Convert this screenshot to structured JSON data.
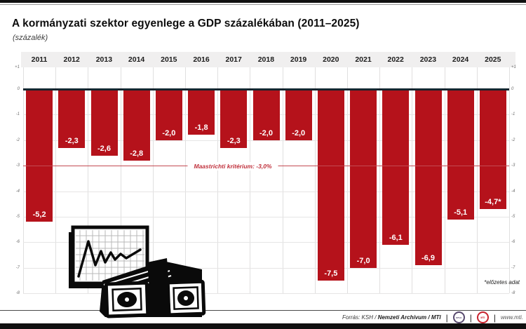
{
  "header": {
    "title": "A kormányzati szektor egyenlege a GDP százalékában (2011–2025)",
    "subtitle": "(százalék)"
  },
  "chart_data": {
    "type": "bar",
    "title": "A kormányzati szektor egyenlege a GDP százalékában (2011–2025)",
    "ylabel": "százalék",
    "categories": [
      "2011",
      "2012",
      "2013",
      "2014",
      "2015",
      "2016",
      "2017",
      "2018",
      "2019",
      "2020",
      "2021",
      "2022",
      "2023",
      "2024",
      "2025"
    ],
    "values": [
      -5.2,
      -2.3,
      -2.6,
      -2.8,
      -2.0,
      -1.8,
      -2.3,
      -2.0,
      -2.0,
      -7.5,
      -7.0,
      -6.1,
      -6.9,
      -5.1,
      -4.7
    ],
    "value_labels": [
      "-5,2",
      "-2,3",
      "-2,6",
      "-2,8",
      "-2,0",
      "-1,8",
      "-2,3",
      "-2,0",
      "-2,0",
      "-7,5",
      "-7,0",
      "-6,1",
      "-6,9",
      "-5,1",
      "-4,7*"
    ],
    "ylim": [
      -8,
      1
    ],
    "y_ticks": [
      "+1",
      "0",
      "-1",
      "-2",
      "-3",
      "-4",
      "-5",
      "-6",
      "-7",
      "-8"
    ],
    "grid": true,
    "legend": "none",
    "bar_color": "#b5121b",
    "zero_line_color": "#152630",
    "reference_line": {
      "value": -3,
      "label": "Maastrichti kritérium: -3,0%",
      "color": "#c44a52",
      "text_color": "#c0313c"
    },
    "footnote": "*előzetes adat"
  },
  "icons": {
    "illustration": "chart-and-banknotes-illustration",
    "mtva_logo": "mtva-logo",
    "mti_logo": "mti-logo"
  },
  "footer": {
    "source_regular": "Forrás: KSH /",
    "source_bold": "Nemzeti Archívum / MTI",
    "divider": "|",
    "mtva_label": "MTVA",
    "mti_label": "MTI",
    "url": "www.mti."
  }
}
